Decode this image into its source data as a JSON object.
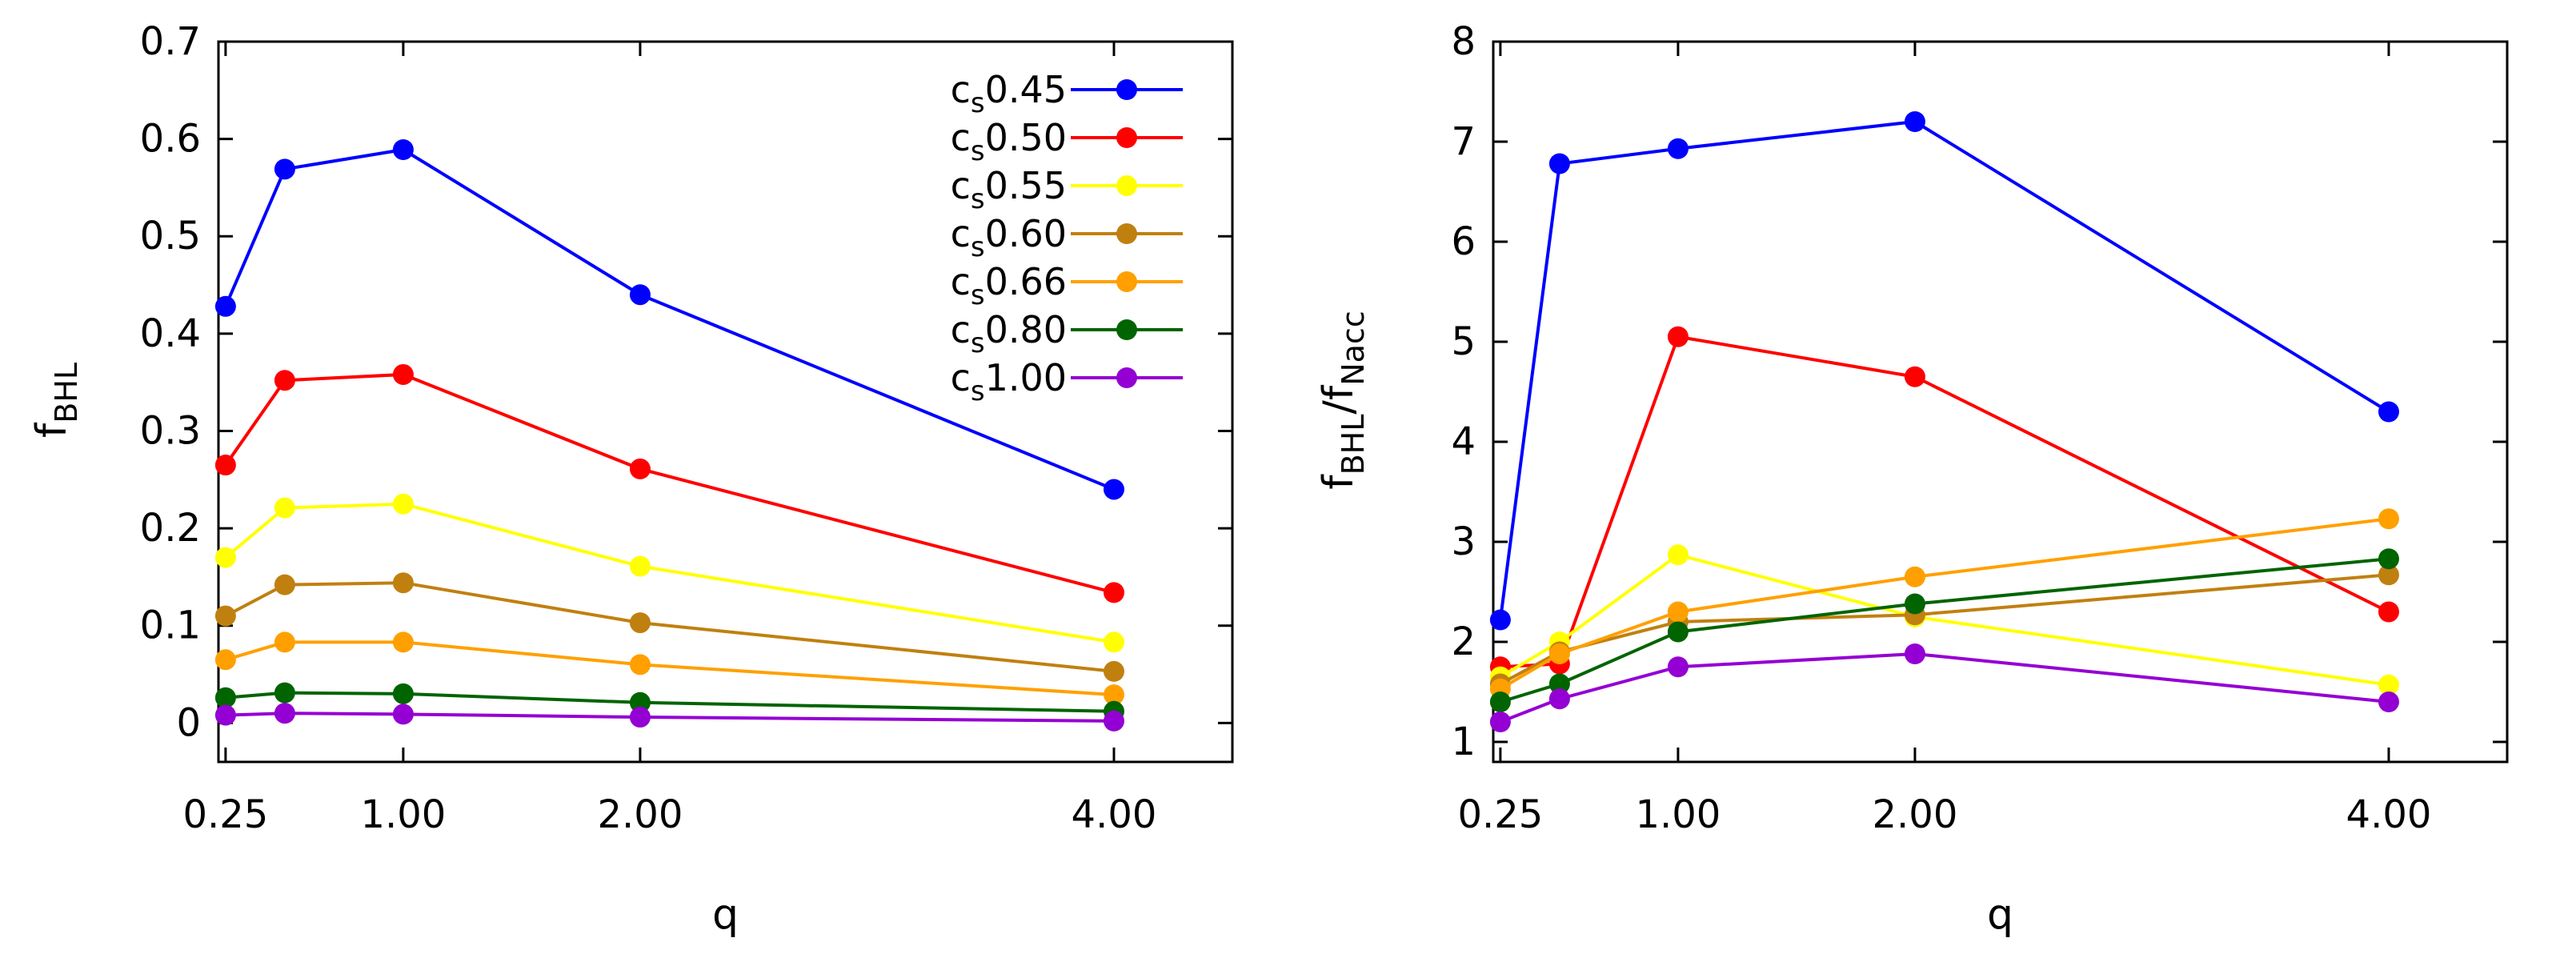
{
  "chart_data": [
    {
      "type": "line",
      "x": [
        0.25,
        0.5,
        1.0,
        2.0,
        4.0
      ],
      "xticks": [
        "0.25",
        "1.00",
        "2.00",
        "4.00"
      ],
      "xlabel": "q",
      "ylabel": {
        "main": "f",
        "sub": "BHL"
      },
      "ylim": [
        -0.04,
        0.7
      ],
      "yticks": [
        "0",
        "0.1",
        "0.2",
        "0.3",
        "0.4",
        "0.5",
        "0.6",
        "0.7"
      ],
      "legend_position": "top-right",
      "series": [
        {
          "name": "0.45",
          "color": "#0000ff",
          "values": [
            0.428,
            0.569,
            0.589,
            0.44,
            0.24
          ]
        },
        {
          "name": "0.50",
          "color": "#ff0000",
          "values": [
            0.265,
            0.352,
            0.358,
            0.261,
            0.134
          ]
        },
        {
          "name": "0.55",
          "color": "#ffff00",
          "values": [
            0.17,
            0.221,
            0.225,
            0.161,
            0.083
          ]
        },
        {
          "name": "0.60",
          "color": "#c08010",
          "values": [
            0.11,
            0.142,
            0.144,
            0.103,
            0.053
          ]
        },
        {
          "name": "0.66",
          "color": "#ffa000",
          "values": [
            0.065,
            0.083,
            0.083,
            0.06,
            0.029
          ]
        },
        {
          "name": "0.80",
          "color": "#006400",
          "values": [
            0.026,
            0.031,
            0.03,
            0.021,
            0.012
          ]
        },
        {
          "name": "1.00",
          "color": "#9400d3",
          "values": [
            0.008,
            0.01,
            0.009,
            0.006,
            0.002
          ]
        }
      ]
    },
    {
      "type": "line",
      "x": [
        0.25,
        0.5,
        1.0,
        2.0,
        4.0
      ],
      "xticks": [
        "0.25",
        "1.00",
        "2.00",
        "4.00"
      ],
      "xlabel": "q",
      "ylabel": {
        "main": "f",
        "sub": "BHL",
        "sep": "/f",
        "sub2": "Nacc"
      },
      "ylim": [
        0.8,
        8
      ],
      "yticks": [
        "1",
        "2",
        "3",
        "4",
        "5",
        "6",
        "7",
        "8"
      ],
      "series": [
        {
          "name": "0.45",
          "color": "#0000ff",
          "values": [
            2.22,
            6.78,
            6.93,
            7.2,
            4.3
          ]
        },
        {
          "name": "0.50",
          "color": "#ff0000",
          "values": [
            1.75,
            1.78,
            5.05,
            4.65,
            2.3
          ]
        },
        {
          "name": "0.55",
          "color": "#ffff00",
          "values": [
            1.65,
            2.0,
            2.87,
            2.25,
            1.57
          ]
        },
        {
          "name": "0.60",
          "color": "#c08010",
          "values": [
            1.58,
            1.9,
            2.2,
            2.27,
            2.67
          ]
        },
        {
          "name": "0.66",
          "color": "#ffa000",
          "values": [
            1.53,
            1.88,
            2.3,
            2.65,
            3.23
          ]
        },
        {
          "name": "0.80",
          "color": "#006400",
          "values": [
            1.4,
            1.58,
            2.1,
            2.38,
            2.83
          ]
        },
        {
          "name": "1.00",
          "color": "#9400d3",
          "values": [
            1.2,
            1.43,
            1.75,
            1.88,
            1.4
          ]
        }
      ]
    }
  ],
  "legend_prefix": {
    "main": "c",
    "sub": "s"
  }
}
